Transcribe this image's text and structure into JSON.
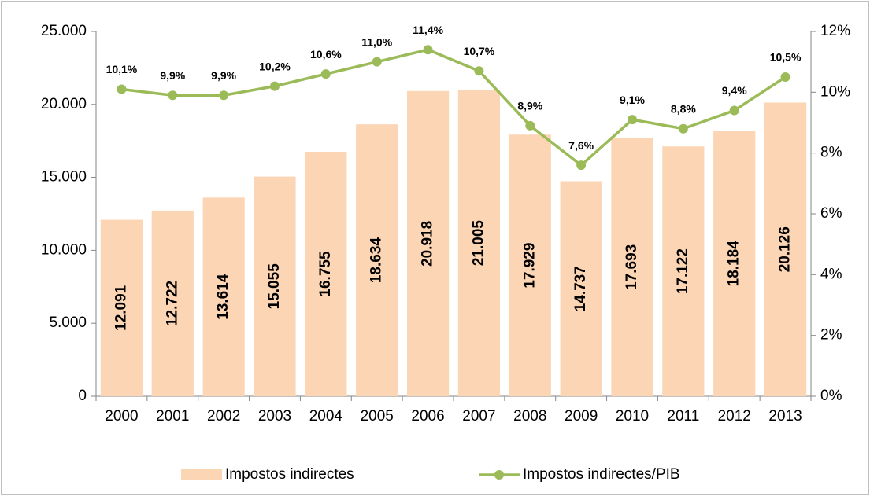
{
  "chart_data": {
    "type": "bar",
    "categories": [
      "2000",
      "2001",
      "2002",
      "2003",
      "2004",
      "2005",
      "2006",
      "2007",
      "2008",
      "2009",
      "2010",
      "2011",
      "2012",
      "2013"
    ],
    "series": [
      {
        "name": "Impostos indirectes",
        "type": "bar",
        "color": "#fcd5b5",
        "values": [
          12091,
          12722,
          13614,
          15055,
          16755,
          18634,
          20918,
          21005,
          17929,
          14737,
          17693,
          17122,
          18184,
          20126
        ],
        "value_labels": [
          "12.091",
          "12.722",
          "13.614",
          "15.055",
          "16.755",
          "18.634",
          "20.918",
          "21.005",
          "17.929",
          "14.737",
          "17.693",
          "17.122",
          "18.184",
          "20.126"
        ]
      },
      {
        "name": "Impostos indirectes/PIB",
        "type": "line",
        "axis": "y2",
        "color": "#9bbb59",
        "values": [
          10.1,
          9.9,
          9.9,
          10.2,
          10.6,
          11.0,
          11.4,
          10.7,
          8.9,
          7.6,
          9.1,
          8.8,
          9.4,
          10.5
        ],
        "value_labels": [
          "10,1%",
          "9,9%",
          "9,9%",
          "10,2%",
          "10,6%",
          "11,0%",
          "11,4%",
          "10,7%",
          "8,9%",
          "7,6%",
          "9,1%",
          "8,8%",
          "9,4%",
          "10,5%"
        ]
      }
    ],
    "ylim": [
      0,
      25000
    ],
    "yticks": [
      0,
      {
        "value": 5000,
        "label": "5.000"
      },
      {
        "value": 10000,
        "label": "10.000"
      },
      {
        "value": 15000,
        "label": "15.000"
      },
      {
        "value": 20000,
        "label": "20.000"
      },
      {
        "value": 25000,
        "label": "25.000"
      }
    ],
    "y2lim": [
      0,
      12
    ],
    "y2ticks": [
      {
        "value": 0,
        "label": "0%"
      },
      {
        "value": 2,
        "label": "2%"
      },
      {
        "value": 4,
        "label": "4%"
      },
      {
        "value": 6,
        "label": "6%"
      },
      {
        "value": 8,
        "label": "8%"
      },
      {
        "value": 10,
        "label": "10%"
      },
      {
        "value": 12,
        "label": "12%"
      }
    ],
    "grid": false,
    "legend": "bottom"
  }
}
